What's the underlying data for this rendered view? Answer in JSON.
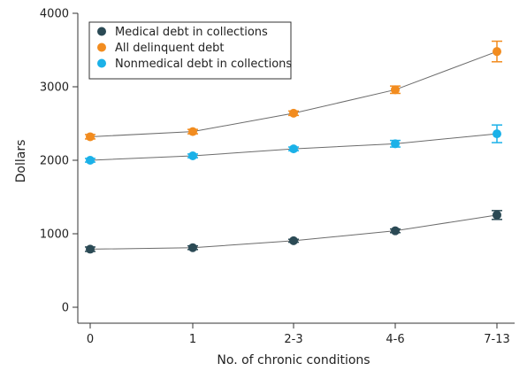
{
  "chart_data": {
    "type": "line",
    "categories": [
      "0",
      "1",
      "2-3",
      "4-6",
      "7-13"
    ],
    "xlabel": "No. of chronic conditions",
    "ylabel": "Dollars",
    "ylim": [
      0,
      4000
    ],
    "yticks": [
      0,
      1000,
      2000,
      3000,
      4000
    ],
    "grid": false,
    "legend_position": "top-left",
    "series": [
      {
        "name": "Medical debt in collections",
        "color": "#2b4a55",
        "values": [
          790,
          810,
          905,
          1040,
          1255
        ],
        "error_low": [
          760,
          785,
          885,
          1015,
          1195
        ],
        "error_high": [
          820,
          835,
          925,
          1065,
          1315
        ]
      },
      {
        "name": "All delinquent debt",
        "color": "#f28c1f",
        "values": [
          2320,
          2390,
          2640,
          2960,
          3480
        ],
        "error_low": [
          2290,
          2360,
          2610,
          2910,
          3340
        ],
        "error_high": [
          2350,
          2420,
          2670,
          3010,
          3620
        ]
      },
      {
        "name": "Nonmedical debt in collections",
        "color": "#1bb1e8",
        "values": [
          2000,
          2060,
          2155,
          2225,
          2360
        ],
        "error_low": [
          1975,
          2035,
          2130,
          2180,
          2240
        ],
        "error_high": [
          2025,
          2085,
          2180,
          2270,
          2480
        ]
      }
    ]
  }
}
